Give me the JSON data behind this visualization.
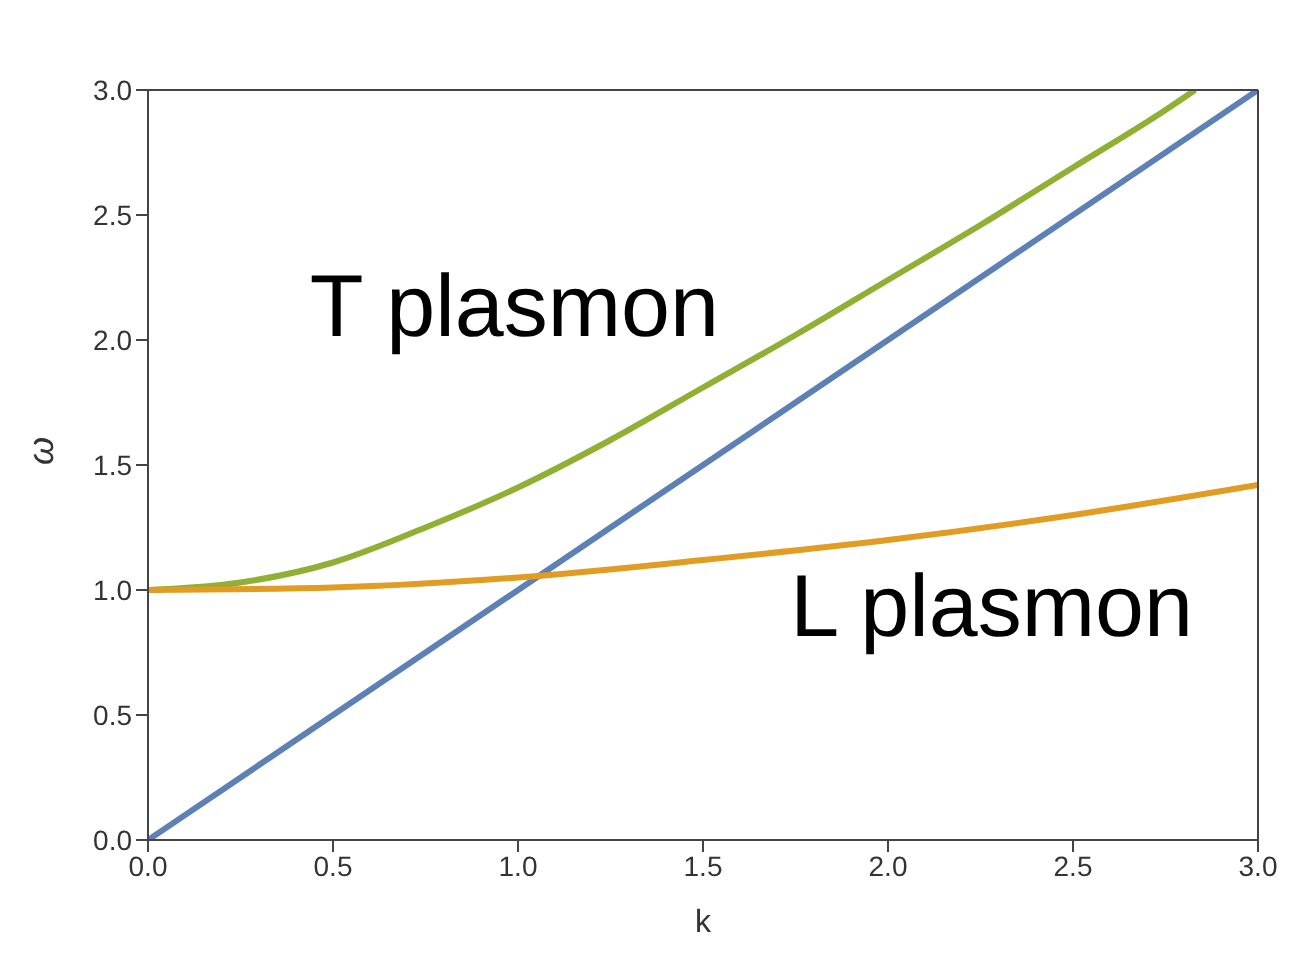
{
  "chart_data": {
    "type": "line",
    "xlabel": "k",
    "ylabel": "ω",
    "xlim": [
      0,
      3
    ],
    "ylim": [
      0,
      3
    ],
    "xticks": [
      {
        "value": 0,
        "label": "0.0"
      },
      {
        "value": 0.5,
        "label": "0.5"
      },
      {
        "value": 1,
        "label": "1.0"
      },
      {
        "value": 1.5,
        "label": "1.5"
      },
      {
        "value": 2,
        "label": "2.0"
      },
      {
        "value": 2.5,
        "label": "2.5"
      },
      {
        "value": 3,
        "label": "3.0"
      }
    ],
    "yticks": [
      {
        "value": 0,
        "label": "0.0"
      },
      {
        "value": 0.5,
        "label": "0.5"
      },
      {
        "value": 1,
        "label": "1.0"
      },
      {
        "value": 1.5,
        "label": "1.5"
      },
      {
        "value": 2,
        "label": "2.0"
      },
      {
        "value": 2.5,
        "label": "2.5"
      },
      {
        "value": 3,
        "label": "3.0"
      }
    ],
    "marker": "none",
    "line_style": "solid",
    "series": [
      {
        "color": "#5e81b5",
        "x": [
          0,
          3
        ],
        "values": [
          0,
          3
        ]
      },
      {
        "color": "#8fb032",
        "x": [
          0,
          0.25,
          0.5,
          0.75,
          1,
          1.25,
          1.5,
          1.75,
          2,
          2.25,
          2.5,
          2.75,
          2.83
        ],
        "values": [
          1,
          1.03,
          1.11,
          1.25,
          1.41,
          1.6,
          1.81,
          2.02,
          2.24,
          2.46,
          2.69,
          2.92,
          3
        ]
      },
      {
        "color": "#e19c24",
        "x": [
          0,
          0.5,
          1,
          1.5,
          2,
          2.5,
          3
        ],
        "values": [
          1,
          1.01,
          1.05,
          1.12,
          1.2,
          1.3,
          1.42
        ]
      }
    ],
    "annotations": [
      "T plasmon",
      "L plasmon"
    ]
  }
}
